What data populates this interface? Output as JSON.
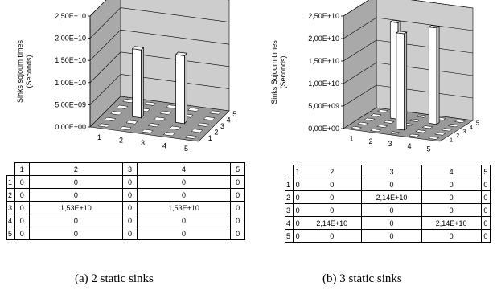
{
  "chart_data": [
    {
      "type": "bar",
      "caption": "(a) 2 static sinks",
      "ylabel": "Sinks sojourn times (Seconds)",
      "ylabel_lines": [
        "Sinks sojourn times",
        "(Seconds)"
      ],
      "ylim": [
        0,
        25000000000
      ],
      "yticks": [
        "0,00E+00",
        "5,00E+09",
        "1,00E+10",
        "1,50E+10",
        "2,00E+10",
        "2,50E+10"
      ],
      "x_ticks": [
        "1",
        "2",
        "3",
        "4",
        "5"
      ],
      "z_ticks": [
        "1",
        "2",
        "3",
        "4",
        "5"
      ],
      "columns": [
        "1",
        "2",
        "3",
        "4",
        "5"
      ],
      "rows": [
        "1",
        "2",
        "3",
        "4",
        "5"
      ],
      "values": [
        [
          0,
          0,
          0,
          0,
          0
        ],
        [
          0,
          0,
          0,
          0,
          0
        ],
        [
          0,
          15300000000,
          0,
          15300000000,
          0
        ],
        [
          0,
          0,
          0,
          0,
          0
        ],
        [
          0,
          0,
          0,
          0,
          0
        ]
      ],
      "cells": [
        [
          "0",
          "0",
          "0",
          "0",
          "0"
        ],
        [
          "0",
          "0",
          "0",
          "0",
          "0"
        ],
        [
          "0",
          "1,53E+10",
          "0",
          "1,53E+10",
          "0"
        ],
        [
          "0",
          "0",
          "0",
          "0",
          "0"
        ],
        [
          "0",
          "0",
          "0",
          "0",
          "0"
        ]
      ]
    },
    {
      "type": "bar",
      "caption": "(b) 3 static sinks",
      "ylabel": "Sinks Sojourn times (Seconds)",
      "ylabel_lines": [
        "Sinks Sojourn times",
        "(Seconds)"
      ],
      "ylim": [
        0,
        25000000000
      ],
      "yticks": [
        "0,00E+00",
        "5,00E+09",
        "1,00E+10",
        "1,50E+10",
        "2,00E+10",
        "2,50E+10"
      ],
      "x_ticks": [
        "1",
        "2",
        "3",
        "4",
        "5"
      ],
      "z_ticks": [
        "1",
        "2",
        "3",
        "4",
        "5"
      ],
      "columns": [
        "1",
        "2",
        "3",
        "4",
        "5"
      ],
      "rows": [
        "1",
        "2",
        "3",
        "4",
        "5"
      ],
      "values": [
        [
          0,
          0,
          0,
          0,
          0
        ],
        [
          0,
          0,
          21400000000,
          0,
          0
        ],
        [
          0,
          0,
          0,
          0,
          0
        ],
        [
          0,
          21400000000,
          0,
          21400000000,
          0
        ],
        [
          0,
          0,
          0,
          0,
          0
        ]
      ],
      "cells": [
        [
          "0",
          "0",
          "0",
          "0",
          "0"
        ],
        [
          "0",
          "0",
          "2,14E+10",
          "0",
          "0"
        ],
        [
          "0",
          "0",
          "0",
          "0",
          "0"
        ],
        [
          "0",
          "2,14E+10",
          "0",
          "2,14E+10",
          "0"
        ],
        [
          "0",
          "0",
          "0",
          "0",
          "0"
        ]
      ]
    }
  ]
}
